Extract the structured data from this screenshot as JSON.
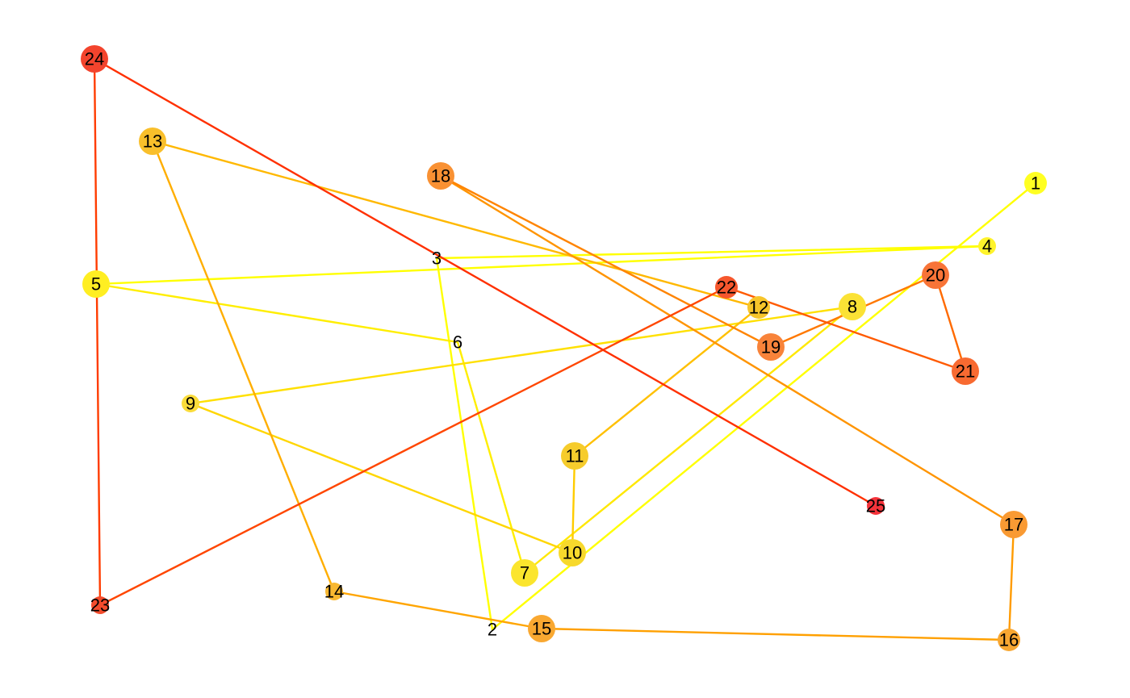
{
  "nodes": [
    {
      "id": "1",
      "label": "1",
      "color": "#ffff22",
      "size": "medium"
    },
    {
      "id": "2",
      "label": "2",
      "color": "#ffff00",
      "size": "none"
    },
    {
      "id": "3",
      "label": "3",
      "color": "#ffff00",
      "size": "none"
    },
    {
      "id": "4",
      "label": "4",
      "color": "#fff32b",
      "size": "small"
    },
    {
      "id": "5",
      "label": "5",
      "color": "#ffee22",
      "size": "large"
    },
    {
      "id": "6",
      "label": "6",
      "color": "#ffff00",
      "size": "none"
    },
    {
      "id": "7",
      "label": "7",
      "color": "#fbe52d",
      "size": "large"
    },
    {
      "id": "8",
      "label": "8",
      "color": "#fbe235",
      "size": "large"
    },
    {
      "id": "9",
      "label": "9",
      "color": "#fadc3a",
      "size": "small"
    },
    {
      "id": "10",
      "label": "10",
      "color": "#f7d92c",
      "size": "large"
    },
    {
      "id": "11",
      "label": "11",
      "color": "#f6cc2c",
      "size": "large"
    },
    {
      "id": "12",
      "label": "12",
      "color": "#f7c52a",
      "size": "medium"
    },
    {
      "id": "13",
      "label": "13",
      "color": "#f9bf2b",
      "size": "large"
    },
    {
      "id": "14",
      "label": "14",
      "color": "#f8b730",
      "size": "small"
    },
    {
      "id": "15",
      "label": "15",
      "color": "#f9a831",
      "size": "large"
    },
    {
      "id": "16",
      "label": "16",
      "color": "#f8a732",
      "size": "medium"
    },
    {
      "id": "17",
      "label": "17",
      "color": "#f99a33",
      "size": "large"
    },
    {
      "id": "18",
      "label": "18",
      "color": "#f99133",
      "size": "large"
    },
    {
      "id": "19",
      "label": "19",
      "color": "#f8833a",
      "size": "large"
    },
    {
      "id": "20",
      "label": "20",
      "color": "#f87437",
      "size": "large"
    },
    {
      "id": "21",
      "label": "21",
      "color": "#f86a31",
      "size": "large"
    },
    {
      "id": "22",
      "label": "22",
      "color": "#f6572d",
      "size": "medium"
    },
    {
      "id": "23",
      "label": "23",
      "color": "#f34c2d",
      "size": "small"
    },
    {
      "id": "24",
      "label": "24",
      "color": "#f3442d",
      "size": "large"
    },
    {
      "id": "25",
      "label": "25",
      "color": "#f5333a",
      "size": "small"
    }
  ],
  "edges": [
    {
      "source": "1",
      "target": "2",
      "color": "#ffff00"
    },
    {
      "source": "2",
      "target": "3",
      "color": "#ffff00"
    },
    {
      "source": "3",
      "target": "4",
      "color": "#ffff00"
    },
    {
      "source": "4",
      "target": "5",
      "color": "#ffff00"
    },
    {
      "source": "5",
      "target": "6",
      "color": "#ffee00"
    },
    {
      "source": "6",
      "target": "7",
      "color": "#ffee00"
    },
    {
      "source": "7",
      "target": "8",
      "color": "#ffe800"
    },
    {
      "source": "8",
      "target": "9",
      "color": "#ffe000"
    },
    {
      "source": "9",
      "target": "10",
      "color": "#ffd600"
    },
    {
      "source": "10",
      "target": "11",
      "color": "#ffcc00"
    },
    {
      "source": "11",
      "target": "12",
      "color": "#ffc000"
    },
    {
      "source": "12",
      "target": "13",
      "color": "#ffb800"
    },
    {
      "source": "13",
      "target": "14",
      "color": "#ffae00"
    },
    {
      "source": "14",
      "target": "15",
      "color": "#ffa500"
    },
    {
      "source": "15",
      "target": "16",
      "color": "#ffa000"
    },
    {
      "source": "16",
      "target": "17",
      "color": "#ff9b00"
    },
    {
      "source": "17",
      "target": "18",
      "color": "#ff9400"
    },
    {
      "source": "18",
      "target": "19",
      "color": "#ff8400"
    },
    {
      "source": "19",
      "target": "20",
      "color": "#ff7800"
    },
    {
      "source": "20",
      "target": "21",
      "color": "#ff6a00"
    },
    {
      "source": "21",
      "target": "22",
      "color": "#ff5a00"
    },
    {
      "source": "22",
      "target": "23",
      "color": "#ff4600"
    },
    {
      "source": "23",
      "target": "24",
      "color": "#ff3c00"
    },
    {
      "source": "24",
      "target": "25",
      "color": "#ff3000"
    }
  ]
}
